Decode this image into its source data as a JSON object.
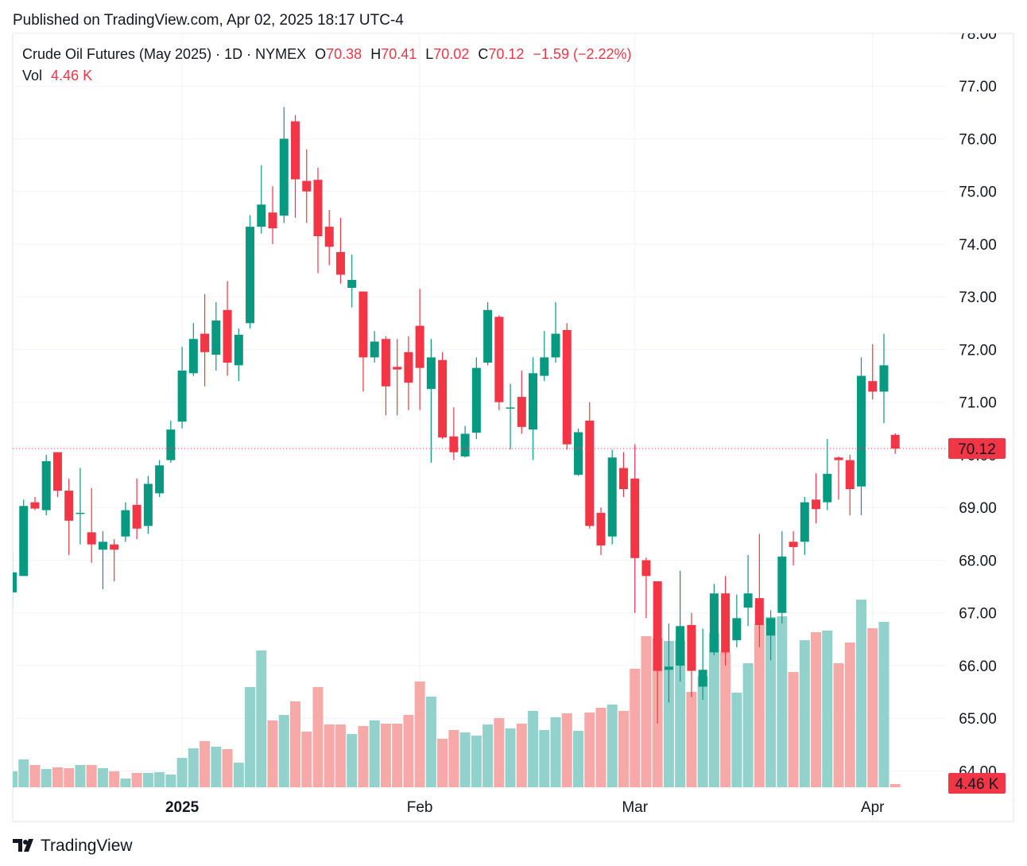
{
  "header": "Published on TradingView.com, Apr 02, 2025 18:17 UTC-4",
  "footer": "TradingView",
  "chart_data": {
    "type": "candlestick",
    "title": "Crude Oil Futures (May 2025) · 1D · NYMEX",
    "ohlc_labels": [
      "O",
      "H",
      "L",
      "C"
    ],
    "change": "−1.59 (−2.22%)",
    "volume_label": "Vol",
    "last_volume_label": "4.46 K",
    "up_color": "#089981",
    "down_color": "#f23645",
    "volume_up_color": "#92d2cc",
    "volume_down_color": "#f7a9a7",
    "categories": [
      null,
      null,
      null,
      null,
      null,
      null,
      null,
      null,
      null,
      null,
      null,
      null,
      null,
      null,
      null,
      "2025",
      null,
      null,
      null,
      null,
      null,
      null,
      null,
      null,
      null,
      null,
      null,
      null,
      null,
      null,
      null,
      null,
      null,
      null,
      null,
      null,
      "Feb",
      null,
      null,
      null,
      null,
      null,
      null,
      null,
      null,
      null,
      null,
      null,
      null,
      null,
      null,
      null,
      null,
      null,
      null,
      "Mar",
      null,
      null,
      null,
      null,
      null,
      null,
      null,
      null,
      null,
      null,
      null,
      null,
      null,
      null,
      null,
      null,
      null,
      null,
      null,
      null,
      "Apr",
      null,
      null
    ],
    "open": [
      67.39,
      67.7,
      69.1,
      68.95,
      70.05,
      69.32,
      68.88,
      68.53,
      68.2,
      68.3,
      68.45,
      69.05,
      68.65,
      69.27,
      69.9,
      70.63,
      71.55,
      72.3,
      71.9,
      72.75,
      71.7,
      72.5,
      74.33,
      74.6,
      74.54,
      76.33,
      75.2,
      75.22,
      74.33,
      73.85,
      73.17,
      73.1,
      71.85,
      72.2,
      71.67,
      71.95,
      72.45,
      71.25,
      71.8,
      70.35,
      69.97,
      70.42,
      71.75,
      72.62,
      70.88,
      71.1,
      70.48,
      71.5,
      71.85,
      72.37,
      69.62,
      70.65,
      68.9,
      68.45,
      69.75,
      69.55,
      68.0,
      67.6,
      65.92,
      66.0,
      66.77,
      65.6,
      66.25,
      67.37,
      66.48,
      67.1,
      67.28,
      66.57,
      67.0,
      68.35,
      68.35,
      69.15,
      69.1,
      69.95,
      69.9,
      69.4,
      71.4,
      71.2,
      70.38
    ],
    "high": [
      68.15,
      69.15,
      69.2,
      70.0,
      70.05,
      69.55,
      69.75,
      69.37,
      68.55,
      68.4,
      69.1,
      69.55,
      69.6,
      69.9,
      70.65,
      72.05,
      72.5,
      73.05,
      72.9,
      73.3,
      72.4,
      74.55,
      75.5,
      75.1,
      76.6,
      76.45,
      75.8,
      75.45,
      74.65,
      74.5,
      73.8,
      73.1,
      72.35,
      72.25,
      72.2,
      72.25,
      73.15,
      72.2,
      71.95,
      70.9,
      70.55,
      71.85,
      72.9,
      72.65,
      71.35,
      71.6,
      71.85,
      72.35,
      72.9,
      72.5,
      70.5,
      71.0,
      69.0,
      70.1,
      70.05,
      70.2,
      68.05,
      67.6,
      66.8,
      67.8,
      67.0,
      66.7,
      67.55,
      67.7,
      67.35,
      68.1,
      68.5,
      67.05,
      68.55,
      68.55,
      69.2,
      69.65,
      70.3,
      69.97,
      70.0,
      71.85,
      72.1,
      72.3,
      70.41
    ],
    "low": [
      67.1,
      67.7,
      68.95,
      68.85,
      69.2,
      68.1,
      68.3,
      67.95,
      67.45,
      67.6,
      68.35,
      68.4,
      68.5,
      69.2,
      69.85,
      70.5,
      71.5,
      71.3,
      71.6,
      71.5,
      71.4,
      72.4,
      74.2,
      74.0,
      74.4,
      74.5,
      74.4,
      73.45,
      73.6,
      73.25,
      72.8,
      71.2,
      71.75,
      70.75,
      70.75,
      70.85,
      70.85,
      69.85,
      70.3,
      69.9,
      69.95,
      70.3,
      71.7,
      70.85,
      70.1,
      70.4,
      69.9,
      71.4,
      71.75,
      70.1,
      69.6,
      68.6,
      68.1,
      68.3,
      69.2,
      67.0,
      66.9,
      64.9,
      65.3,
      65.7,
      65.4,
      65.35,
      66.2,
      66.0,
      66.35,
      66.75,
      66.35,
      66.1,
      66.8,
      67.9,
      68.1,
      68.7,
      68.95,
      69.15,
      68.85,
      68.85,
      71.05,
      70.6,
      70.02
    ],
    "close": [
      67.77,
      69.03,
      68.98,
      69.88,
      69.32,
      68.75,
      68.9,
      68.3,
      68.35,
      68.2,
      68.95,
      68.6,
      69.45,
      69.8,
      70.48,
      71.6,
      72.2,
      71.95,
      72.55,
      71.75,
      72.28,
      74.33,
      74.75,
      74.3,
      76.0,
      75.23,
      75.0,
      74.15,
      73.95,
      73.42,
      73.32,
      71.85,
      72.15,
      71.3,
      71.62,
      71.37,
      71.65,
      71.85,
      70.33,
      70.05,
      70.4,
      71.65,
      72.75,
      71.0,
      70.9,
      70.53,
      71.55,
      71.85,
      72.3,
      70.2,
      70.43,
      68.65,
      68.28,
      69.95,
      69.35,
      68.04,
      67.7,
      65.9,
      65.98,
      66.75,
      65.9,
      65.92,
      67.37,
      66.25,
      66.9,
      67.37,
      66.77,
      66.9,
      68.07,
      68.25,
      69.1,
      68.97,
      69.64,
      69.9,
      69.35,
      71.5,
      71.2,
      71.7,
      70.12
    ],
    "volume": [
      22000,
      38500,
      30800,
      25300,
      27500,
      26400,
      30800,
      30800,
      26400,
      22000,
      12100,
      19800,
      19800,
      20900,
      17600,
      40700,
      53900,
      63800,
      56100,
      52800,
      34100,
      138600,
      189200,
      92400,
      100100,
      118800,
      77000,
      138600,
      86900,
      86900,
      73700,
      84700,
      92400,
      88000,
      88000,
      100100,
      146300,
      125400,
      67100,
      79200,
      75900,
      71500,
      86900,
      95700,
      81400,
      88000,
      105600,
      79200,
      96800,
      102300,
      78100,
      103400,
      110000,
      114400,
      105600,
      163900,
      209000,
      205700,
      202400,
      202400,
      132000,
      154000,
      213400,
      187000,
      130900,
      171600,
      225500,
      235400,
      236500,
      159500,
      203500,
      214500,
      216700,
      171600,
      200200,
      259600,
      220000,
      228800,
      4460
    ],
    "ylim": [
      63.69,
      78.0
    ],
    "yticks": [
      {
        "value": 64,
        "label": "64.00"
      },
      {
        "value": 65,
        "label": "65.00"
      },
      {
        "value": 66,
        "label": "66.00"
      },
      {
        "value": 67,
        "label": "67.00"
      },
      {
        "value": 68,
        "label": "68.00"
      },
      {
        "value": 69,
        "label": "69.00"
      },
      {
        "value": 70,
        "label": "70.00"
      },
      {
        "value": 71,
        "label": "71.00"
      },
      {
        "value": 72,
        "label": "72.00"
      },
      {
        "value": 73,
        "label": "73.00"
      },
      {
        "value": 74,
        "label": "74.00"
      },
      {
        "value": 75,
        "label": "75.00"
      },
      {
        "value": 76,
        "label": "76.00"
      },
      {
        "value": 77,
        "label": "77.00"
      },
      {
        "value": 78,
        "label": "78.00"
      }
    ],
    "grid": true
  }
}
